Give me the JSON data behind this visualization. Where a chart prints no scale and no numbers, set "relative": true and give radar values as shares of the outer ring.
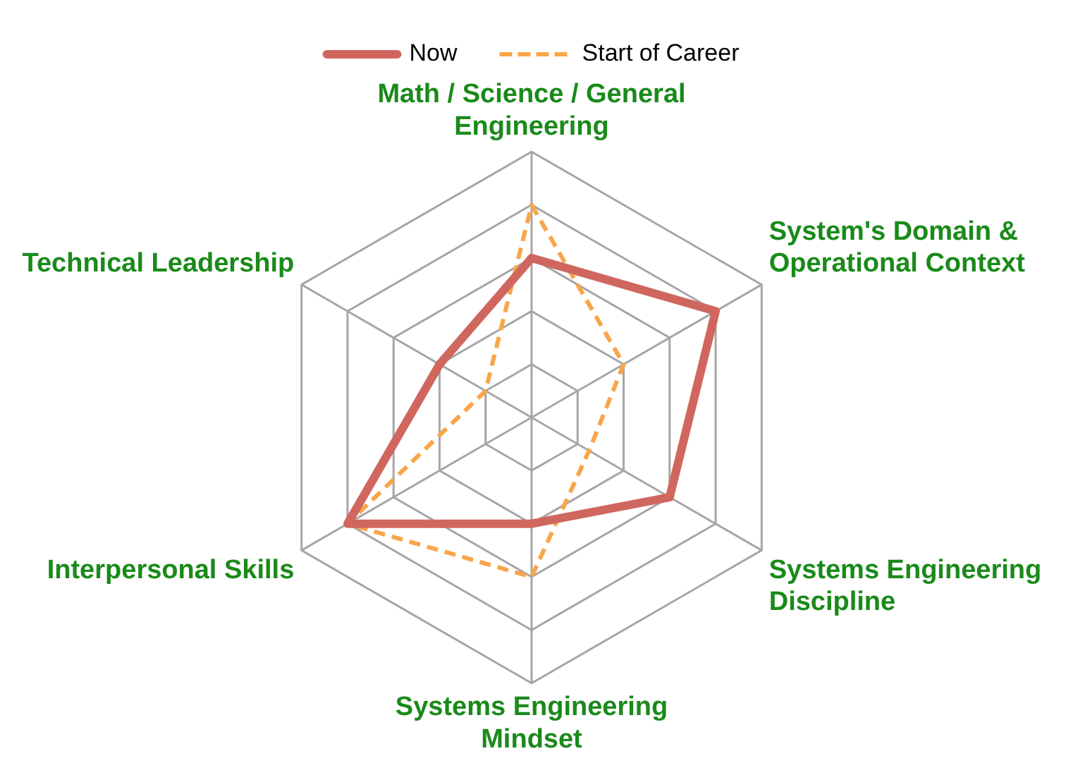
{
  "chart_data": {
    "type": "radar",
    "relative": true,
    "grid": true,
    "legend": "top",
    "categories": [
      "Math / Science / General Engineering",
      "System's Domain & Operational Context",
      "Systems Engineering Discipline",
      "Systems Engineering Mindset",
      "Interpersonal Skills",
      "Technical Leadership"
    ],
    "series": [
      {
        "name": "Now",
        "color": "#d0675f",
        "line_style": "solid",
        "values": [
          0.6,
          0.8,
          0.6,
          0.4,
          0.8,
          0.4
        ]
      },
      {
        "name": "Start of Career",
        "color": "#f9a54a",
        "line_style": "dashed",
        "values": [
          0.8,
          0.4,
          0.25,
          0.6,
          0.8,
          0.2
        ]
      }
    ]
  }
}
